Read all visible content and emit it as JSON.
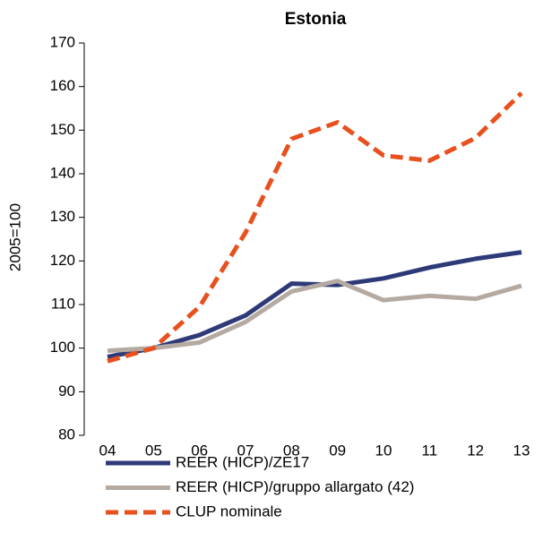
{
  "chart_data": {
    "type": "line",
    "title": "Estonia",
    "y_label": "2005=100",
    "categories": [
      "04",
      "05",
      "06",
      "07",
      "08",
      "09",
      "10",
      "11",
      "12",
      "13"
    ],
    "series": [
      {
        "name": "REER (HICP)/ZE17",
        "color": "#2e3a78",
        "line_style": "solid",
        "values": [
          98,
          100,
          103,
          107.5,
          114.8,
          114.5,
          116,
          118.5,
          120.5,
          122
        ]
      },
      {
        "name": "REER (HICP)/gruppo allargato (42)",
        "color": "#b5aaa2",
        "line_style": "solid",
        "values": [
          99.4,
          100,
          101.3,
          106,
          113,
          115.4,
          111,
          112,
          111.3,
          114.3
        ]
      },
      {
        "name": "CLUP nominale",
        "color": "#e8501e",
        "line_style": "dashed",
        "values": [
          97,
          100,
          109.5,
          126.5,
          148,
          151.8,
          144.2,
          143,
          148.2,
          158.5
        ]
      }
    ],
    "ylim": [
      80,
      170
    ],
    "yticks": [
      80,
      90,
      100,
      110,
      120,
      130,
      140,
      150,
      160,
      170
    ]
  }
}
